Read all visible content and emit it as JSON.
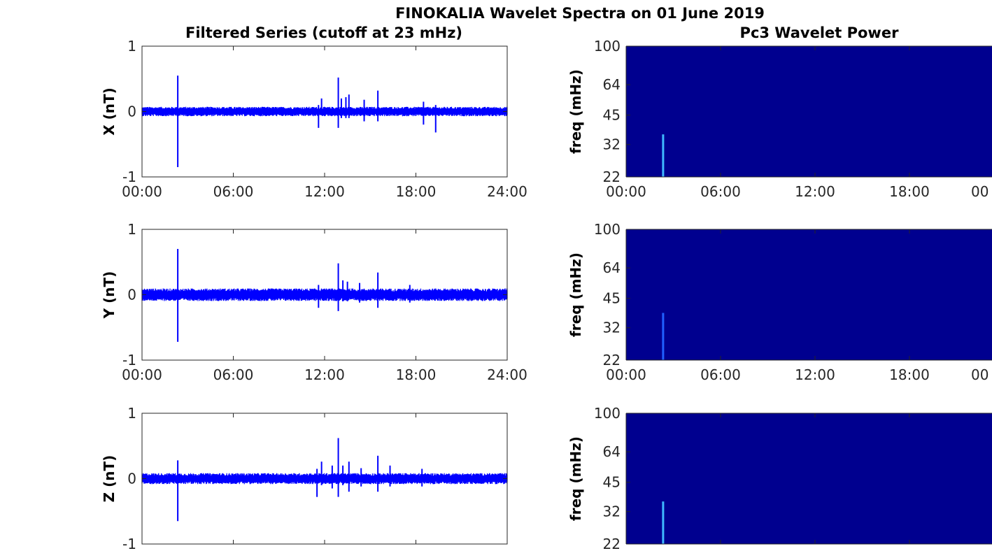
{
  "figure": {
    "title": "FINOKALIA Wavelet Spectra on 01 June 2019",
    "left_title": "Filtered Series (cutoff at 23 mHz)",
    "right_title": "Pc3 Wavelet Power"
  },
  "chart_data": [
    {
      "type": "line",
      "ylabel": "X (nT)",
      "ylim": [
        -1,
        1
      ],
      "xlim": [
        0,
        24
      ],
      "y_ticks": [
        "-1",
        "0",
        "1"
      ],
      "x_ticks": [
        "00:00",
        "06:00",
        "12:00",
        "18:00",
        "24:00"
      ],
      "line_color": "#0000ff",
      "noise_amplitude": 0.06,
      "spikes": [
        {
          "t": 2.35,
          "min": -0.85,
          "max": 0.55
        },
        {
          "t": 11.6,
          "min": -0.25,
          "max": 0.1
        },
        {
          "t": 11.8,
          "min": -0.05,
          "max": 0.2
        },
        {
          "t": 12.9,
          "min": -0.25,
          "max": 0.52
        },
        {
          "t": 13.1,
          "min": -0.1,
          "max": 0.2
        },
        {
          "t": 13.4,
          "min": -0.1,
          "max": 0.22
        },
        {
          "t": 13.6,
          "min": -0.1,
          "max": 0.26
        },
        {
          "t": 14.6,
          "min": -0.15,
          "max": 0.18
        },
        {
          "t": 15.5,
          "min": -0.15,
          "max": 0.32
        },
        {
          "t": 18.5,
          "min": -0.2,
          "max": 0.15
        },
        {
          "t": 19.3,
          "min": -0.32,
          "max": 0.1
        }
      ]
    },
    {
      "type": "line",
      "ylabel": "Y (nT)",
      "ylim": [
        -1,
        1
      ],
      "xlim": [
        0,
        24
      ],
      "y_ticks": [
        "-1",
        "0",
        "1"
      ],
      "x_ticks": [
        "00:00",
        "06:00",
        "12:00",
        "18:00",
        "24:00"
      ],
      "line_color": "#0000ff",
      "noise_amplitude": 0.08,
      "spikes": [
        {
          "t": 2.35,
          "min": -0.72,
          "max": 0.7
        },
        {
          "t": 11.6,
          "min": -0.2,
          "max": 0.15
        },
        {
          "t": 12.9,
          "min": -0.25,
          "max": 0.48
        },
        {
          "t": 13.2,
          "min": -0.1,
          "max": 0.22
        },
        {
          "t": 13.5,
          "min": -0.1,
          "max": 0.2
        },
        {
          "t": 14.3,
          "min": -0.12,
          "max": 0.18
        },
        {
          "t": 15.5,
          "min": -0.2,
          "max": 0.34
        },
        {
          "t": 17.6,
          "min": -0.12,
          "max": 0.15
        }
      ]
    },
    {
      "type": "line",
      "ylabel": "Z (nT)",
      "ylim": [
        -1,
        1
      ],
      "xlim": [
        0,
        24
      ],
      "y_ticks": [
        "-1",
        "0",
        "1"
      ],
      "x_ticks": [],
      "line_color": "#0000ff",
      "noise_amplitude": 0.07,
      "spikes": [
        {
          "t": 2.35,
          "min": -0.65,
          "max": 0.28
        },
        {
          "t": 11.5,
          "min": -0.28,
          "max": 0.15
        },
        {
          "t": 11.8,
          "min": -0.1,
          "max": 0.26
        },
        {
          "t": 12.5,
          "min": -0.15,
          "max": 0.2
        },
        {
          "t": 12.9,
          "min": -0.28,
          "max": 0.62
        },
        {
          "t": 13.2,
          "min": -0.1,
          "max": 0.2
        },
        {
          "t": 13.6,
          "min": -0.2,
          "max": 0.26
        },
        {
          "t": 14.4,
          "min": -0.12,
          "max": 0.16
        },
        {
          "t": 15.5,
          "min": -0.2,
          "max": 0.35
        },
        {
          "t": 16.3,
          "min": -0.12,
          "max": 0.2
        },
        {
          "t": 18.4,
          "min": -0.12,
          "max": 0.15
        }
      ]
    },
    {
      "type": "heatmap",
      "ylabel": "freq (mHz)",
      "y_scale": "log",
      "ylim": [
        22,
        100
      ],
      "xlim": [
        0,
        24
      ],
      "y_ticks": [
        22,
        32,
        45,
        64,
        100
      ],
      "x_ticks": [
        "00:00",
        "06:00",
        "12:00",
        "18:00",
        "00"
      ],
      "background_color": "#00008f",
      "features": [
        {
          "t": 2.35,
          "freq_min": 22,
          "freq_max": 36,
          "color": "#3fb8ff"
        }
      ]
    },
    {
      "type": "heatmap",
      "ylabel": "freq (mHz)",
      "y_scale": "log",
      "ylim": [
        22,
        100
      ],
      "xlim": [
        0,
        24
      ],
      "y_ticks": [
        22,
        32,
        45,
        64,
        100
      ],
      "x_ticks": [
        "00:00",
        "06:00",
        "12:00",
        "18:00",
        "00"
      ],
      "background_color": "#00008f",
      "features": [
        {
          "t": 2.35,
          "freq_min": 22,
          "freq_max": 38,
          "color": "#2060ff"
        }
      ]
    },
    {
      "type": "heatmap",
      "ylabel": "freq (mHz)",
      "y_scale": "log",
      "ylim": [
        22,
        100
      ],
      "xlim": [
        0,
        24
      ],
      "y_ticks": [
        22,
        32,
        45,
        64,
        100
      ],
      "x_ticks": [],
      "background_color": "#00008f",
      "features": [
        {
          "t": 2.35,
          "freq_min": 22,
          "freq_max": 36,
          "color": "#3fb8ff"
        }
      ]
    }
  ]
}
